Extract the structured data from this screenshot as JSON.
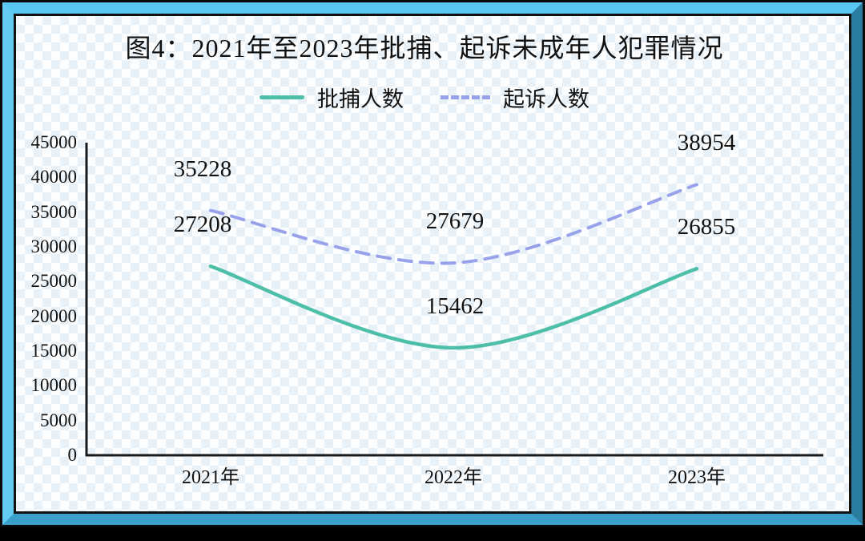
{
  "figure": {
    "caption": "图4：2021年至2023年批捕、起诉未成年人犯罪情况"
  },
  "chart_data": {
    "type": "line",
    "title": "图4：2021年至2023年批捕、起诉未成年人犯罪情况",
    "categories": [
      "2021年",
      "2022年",
      "2023年"
    ],
    "series": [
      {
        "name": "批捕人数",
        "values": [
          27208,
          15462,
          26855
        ],
        "color": "#4dbfa8",
        "line_style": "solid"
      },
      {
        "name": "起诉人数",
        "values": [
          35228,
          27679,
          38954
        ],
        "color": "#98a2ea",
        "line_style": "dashed"
      }
    ],
    "y_ticks": [
      0,
      5000,
      10000,
      15000,
      20000,
      25000,
      30000,
      35000,
      40000,
      45000
    ],
    "ylim": [
      0,
      45000
    ],
    "xlabel": "",
    "ylabel": "",
    "grid": false,
    "smooth": true,
    "data_labels": true,
    "legend_position": "top-center"
  },
  "colors": {
    "series_arrest": "#4dbfa8",
    "series_prosecute": "#98a2ea",
    "axis": "#1a1a1a",
    "frame_top": "#58c7f2",
    "frame_left": "#63cbf2",
    "frame_right": "#2a7d9e",
    "frame_bottom": "#3a9fc9",
    "pattern_dot": "#e9f1f8",
    "bottom_bar": "#000000"
  }
}
